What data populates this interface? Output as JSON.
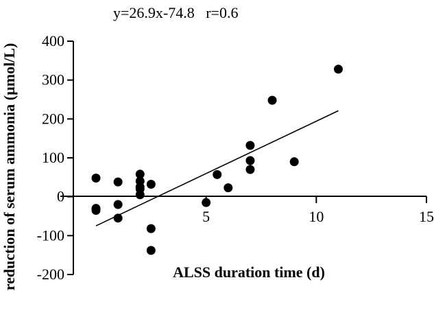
{
  "chart_data": {
    "type": "scatter",
    "title": "",
    "annotation": "y=26.9x-74.8   r=0.6",
    "xlabel": "ALSS duration time (d)",
    "ylabel": "reduction of serum ammonia (µmol/L)",
    "xlim": [
      0,
      15
    ],
    "ylim": [
      -200,
      400
    ],
    "xticks": [
      5,
      10,
      15
    ],
    "yticks": [
      -200,
      -100,
      0,
      100,
      200,
      300,
      400
    ],
    "grid": false,
    "legend": "none",
    "marker_color": "#000000",
    "points": [
      {
        "x": 0,
        "y": 48
      },
      {
        "x": 0,
        "y": -30
      },
      {
        "x": 0,
        "y": -35
      },
      {
        "x": 1,
        "y": 38
      },
      {
        "x": 1,
        "y": -20
      },
      {
        "x": 1,
        "y": -55
      },
      {
        "x": 2,
        "y": 58
      },
      {
        "x": 2,
        "y": 40
      },
      {
        "x": 2,
        "y": 25
      },
      {
        "x": 2,
        "y": 20
      },
      {
        "x": 2,
        "y": 5
      },
      {
        "x": 2.5,
        "y": 32
      },
      {
        "x": 2.5,
        "y": -82
      },
      {
        "x": 2.5,
        "y": -138
      },
      {
        "x": 5,
        "y": -15
      },
      {
        "x": 5.5,
        "y": 57
      },
      {
        "x": 6,
        "y": 23
      },
      {
        "x": 7,
        "y": 132
      },
      {
        "x": 7,
        "y": 93
      },
      {
        "x": 7,
        "y": 70
      },
      {
        "x": 8,
        "y": 248
      },
      {
        "x": 9,
        "y": 90
      },
      {
        "x": 11,
        "y": 328
      }
    ],
    "fit_line": {
      "slope": 26.9,
      "intercept": -74.8,
      "x_range": [
        0,
        11
      ]
    }
  }
}
